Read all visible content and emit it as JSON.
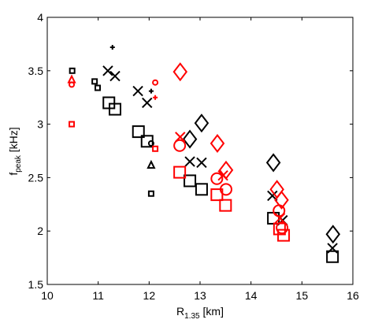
{
  "chart_data": {
    "type": "scatter",
    "x_label": {
      "main": "R",
      "sub": "1.35",
      "unit": " [km]"
    },
    "y_label": {
      "main": "f",
      "sub": "peak",
      "unit": " [kHz]"
    },
    "xlim": [
      10,
      16
    ],
    "xticks": [
      10,
      11,
      12,
      13,
      14,
      15,
      16
    ],
    "ylim": [
      1.5,
      4
    ],
    "yticks": [
      1.5,
      2,
      2.5,
      3,
      3.5,
      4
    ],
    "series": [
      {
        "color": "#000000",
        "marker": "square",
        "size": 3,
        "x": [
          10.49,
          10.93,
          10.99,
          12.04
        ],
        "values": [
          3.5,
          3.4,
          3.34,
          2.35
        ]
      },
      {
        "color": "#000000",
        "marker": "square",
        "size": 7,
        "x": [
          11.21,
          11.33,
          11.79,
          11.96,
          12.8,
          13.03,
          14.44,
          15.6
        ],
        "values": [
          3.2,
          3.14,
          2.93,
          2.84,
          2.47,
          2.39,
          2.12,
          1.76
        ]
      },
      {
        "color": "#000000",
        "marker": "cross",
        "size": 6,
        "x": [
          11.19,
          11.33,
          11.78,
          11.96,
          12.8,
          13.03,
          14.42,
          14.62,
          15.6
        ],
        "values": [
          3.5,
          3.45,
          3.31,
          3.2,
          2.65,
          2.64,
          2.33,
          2.1,
          1.84
        ]
      },
      {
        "color": "#000000",
        "marker": "plus",
        "size": 3,
        "x": [
          11.28,
          12.04
        ],
        "values": [
          3.72,
          3.31
        ]
      },
      {
        "color": "#000000",
        "marker": "diamond",
        "size": 8,
        "x": [
          12.8,
          13.03,
          14.44,
          15.61
        ],
        "values": [
          2.86,
          3.01,
          2.64,
          1.97
        ]
      },
      {
        "color": "#000000",
        "marker": "triangle",
        "size": 4,
        "x": [
          12.04
        ],
        "values": [
          2.62
        ]
      },
      {
        "color": "#000000",
        "marker": "circle",
        "size": 3,
        "x": [
          12.04
        ],
        "values": [
          2.82
        ]
      },
      {
        "color": "#ff0000",
        "marker": "triangle",
        "size": 4,
        "x": [
          10.48
        ],
        "values": [
          3.42
        ]
      },
      {
        "color": "#ff0000",
        "marker": "circle",
        "size": 3,
        "x": [
          10.48,
          12.12
        ],
        "values": [
          3.37,
          3.39
        ]
      },
      {
        "color": "#ff0000",
        "marker": "square",
        "size": 3,
        "x": [
          10.48,
          12.12
        ],
        "values": [
          3.0,
          2.77
        ]
      },
      {
        "color": "#ff0000",
        "marker": "plus",
        "size": 3,
        "x": [
          12.12
        ],
        "values": [
          3.25
        ]
      },
      {
        "color": "#ff0000",
        "marker": "diamond",
        "size": 8,
        "x": [
          12.61,
          13.34,
          13.51,
          14.51,
          14.6
        ],
        "values": [
          3.49,
          2.82,
          2.57,
          2.39,
          2.29
        ]
      },
      {
        "color": "#ff0000",
        "marker": "cross",
        "size": 6,
        "x": [
          12.61,
          13.45,
          14.57
        ],
        "values": [
          2.88,
          2.52,
          2.12
        ]
      },
      {
        "color": "#ff0000",
        "marker": "circle",
        "size": 7,
        "x": [
          12.6,
          13.33,
          13.51,
          14.55,
          14.61
        ],
        "values": [
          2.8,
          2.49,
          2.39,
          2.19,
          2.03
        ]
      },
      {
        "color": "#ff0000",
        "marker": "square",
        "size": 7,
        "x": [
          12.6,
          13.33,
          13.5,
          14.56,
          14.64
        ],
        "values": [
          2.55,
          2.34,
          2.24,
          2.02,
          1.96
        ]
      }
    ]
  }
}
